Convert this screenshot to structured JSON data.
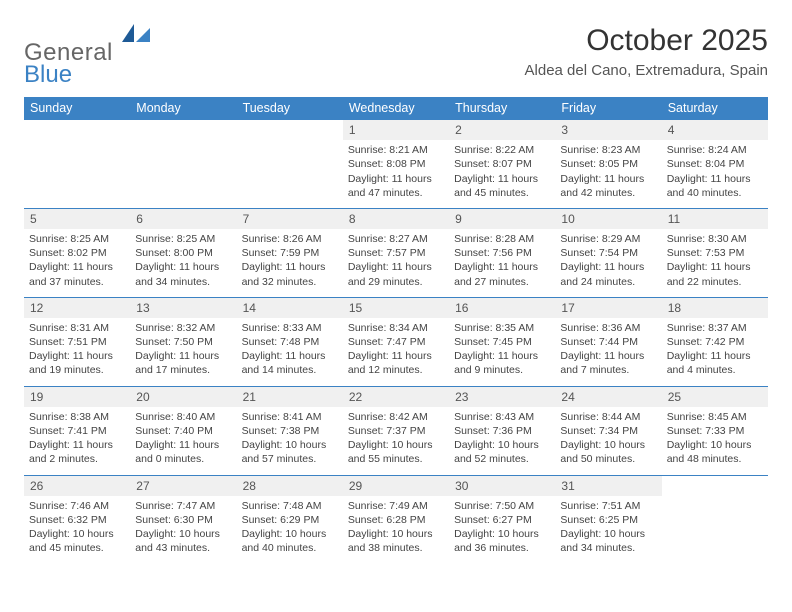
{
  "logo": {
    "general": "General",
    "blue": "Blue"
  },
  "title": "October 2025",
  "location": "Aldea del Cano, Extremadura, Spain",
  "colors": {
    "header_bg": "#3b82c4",
    "header_text": "#ffffff",
    "daynum_bg": "#f0f0f0",
    "border": "#3b82c4",
    "text": "#444444",
    "logo_gray": "#666666",
    "logo_blue": "#3b82c4"
  },
  "day_headers": [
    "Sunday",
    "Monday",
    "Tuesday",
    "Wednesday",
    "Thursday",
    "Friday",
    "Saturday"
  ],
  "weeks": [
    [
      null,
      null,
      null,
      {
        "n": "1",
        "sr": "Sunrise: 8:21 AM",
        "ss": "Sunset: 8:08 PM",
        "dl": "Daylight: 11 hours and 47 minutes."
      },
      {
        "n": "2",
        "sr": "Sunrise: 8:22 AM",
        "ss": "Sunset: 8:07 PM",
        "dl": "Daylight: 11 hours and 45 minutes."
      },
      {
        "n": "3",
        "sr": "Sunrise: 8:23 AM",
        "ss": "Sunset: 8:05 PM",
        "dl": "Daylight: 11 hours and 42 minutes."
      },
      {
        "n": "4",
        "sr": "Sunrise: 8:24 AM",
        "ss": "Sunset: 8:04 PM",
        "dl": "Daylight: 11 hours and 40 minutes."
      }
    ],
    [
      {
        "n": "5",
        "sr": "Sunrise: 8:25 AM",
        "ss": "Sunset: 8:02 PM",
        "dl": "Daylight: 11 hours and 37 minutes."
      },
      {
        "n": "6",
        "sr": "Sunrise: 8:25 AM",
        "ss": "Sunset: 8:00 PM",
        "dl": "Daylight: 11 hours and 34 minutes."
      },
      {
        "n": "7",
        "sr": "Sunrise: 8:26 AM",
        "ss": "Sunset: 7:59 PM",
        "dl": "Daylight: 11 hours and 32 minutes."
      },
      {
        "n": "8",
        "sr": "Sunrise: 8:27 AM",
        "ss": "Sunset: 7:57 PM",
        "dl": "Daylight: 11 hours and 29 minutes."
      },
      {
        "n": "9",
        "sr": "Sunrise: 8:28 AM",
        "ss": "Sunset: 7:56 PM",
        "dl": "Daylight: 11 hours and 27 minutes."
      },
      {
        "n": "10",
        "sr": "Sunrise: 8:29 AM",
        "ss": "Sunset: 7:54 PM",
        "dl": "Daylight: 11 hours and 24 minutes."
      },
      {
        "n": "11",
        "sr": "Sunrise: 8:30 AM",
        "ss": "Sunset: 7:53 PM",
        "dl": "Daylight: 11 hours and 22 minutes."
      }
    ],
    [
      {
        "n": "12",
        "sr": "Sunrise: 8:31 AM",
        "ss": "Sunset: 7:51 PM",
        "dl": "Daylight: 11 hours and 19 minutes."
      },
      {
        "n": "13",
        "sr": "Sunrise: 8:32 AM",
        "ss": "Sunset: 7:50 PM",
        "dl": "Daylight: 11 hours and 17 minutes."
      },
      {
        "n": "14",
        "sr": "Sunrise: 8:33 AM",
        "ss": "Sunset: 7:48 PM",
        "dl": "Daylight: 11 hours and 14 minutes."
      },
      {
        "n": "15",
        "sr": "Sunrise: 8:34 AM",
        "ss": "Sunset: 7:47 PM",
        "dl": "Daylight: 11 hours and 12 minutes."
      },
      {
        "n": "16",
        "sr": "Sunrise: 8:35 AM",
        "ss": "Sunset: 7:45 PM",
        "dl": "Daylight: 11 hours and 9 minutes."
      },
      {
        "n": "17",
        "sr": "Sunrise: 8:36 AM",
        "ss": "Sunset: 7:44 PM",
        "dl": "Daylight: 11 hours and 7 minutes."
      },
      {
        "n": "18",
        "sr": "Sunrise: 8:37 AM",
        "ss": "Sunset: 7:42 PM",
        "dl": "Daylight: 11 hours and 4 minutes."
      }
    ],
    [
      {
        "n": "19",
        "sr": "Sunrise: 8:38 AM",
        "ss": "Sunset: 7:41 PM",
        "dl": "Daylight: 11 hours and 2 minutes."
      },
      {
        "n": "20",
        "sr": "Sunrise: 8:40 AM",
        "ss": "Sunset: 7:40 PM",
        "dl": "Daylight: 11 hours and 0 minutes."
      },
      {
        "n": "21",
        "sr": "Sunrise: 8:41 AM",
        "ss": "Sunset: 7:38 PM",
        "dl": "Daylight: 10 hours and 57 minutes."
      },
      {
        "n": "22",
        "sr": "Sunrise: 8:42 AM",
        "ss": "Sunset: 7:37 PM",
        "dl": "Daylight: 10 hours and 55 minutes."
      },
      {
        "n": "23",
        "sr": "Sunrise: 8:43 AM",
        "ss": "Sunset: 7:36 PM",
        "dl": "Daylight: 10 hours and 52 minutes."
      },
      {
        "n": "24",
        "sr": "Sunrise: 8:44 AM",
        "ss": "Sunset: 7:34 PM",
        "dl": "Daylight: 10 hours and 50 minutes."
      },
      {
        "n": "25",
        "sr": "Sunrise: 8:45 AM",
        "ss": "Sunset: 7:33 PM",
        "dl": "Daylight: 10 hours and 48 minutes."
      }
    ],
    [
      {
        "n": "26",
        "sr": "Sunrise: 7:46 AM",
        "ss": "Sunset: 6:32 PM",
        "dl": "Daylight: 10 hours and 45 minutes."
      },
      {
        "n": "27",
        "sr": "Sunrise: 7:47 AM",
        "ss": "Sunset: 6:30 PM",
        "dl": "Daylight: 10 hours and 43 minutes."
      },
      {
        "n": "28",
        "sr": "Sunrise: 7:48 AM",
        "ss": "Sunset: 6:29 PM",
        "dl": "Daylight: 10 hours and 40 minutes."
      },
      {
        "n": "29",
        "sr": "Sunrise: 7:49 AM",
        "ss": "Sunset: 6:28 PM",
        "dl": "Daylight: 10 hours and 38 minutes."
      },
      {
        "n": "30",
        "sr": "Sunrise: 7:50 AM",
        "ss": "Sunset: 6:27 PM",
        "dl": "Daylight: 10 hours and 36 minutes."
      },
      {
        "n": "31",
        "sr": "Sunrise: 7:51 AM",
        "ss": "Sunset: 6:25 PM",
        "dl": "Daylight: 10 hours and 34 minutes."
      },
      null
    ]
  ]
}
